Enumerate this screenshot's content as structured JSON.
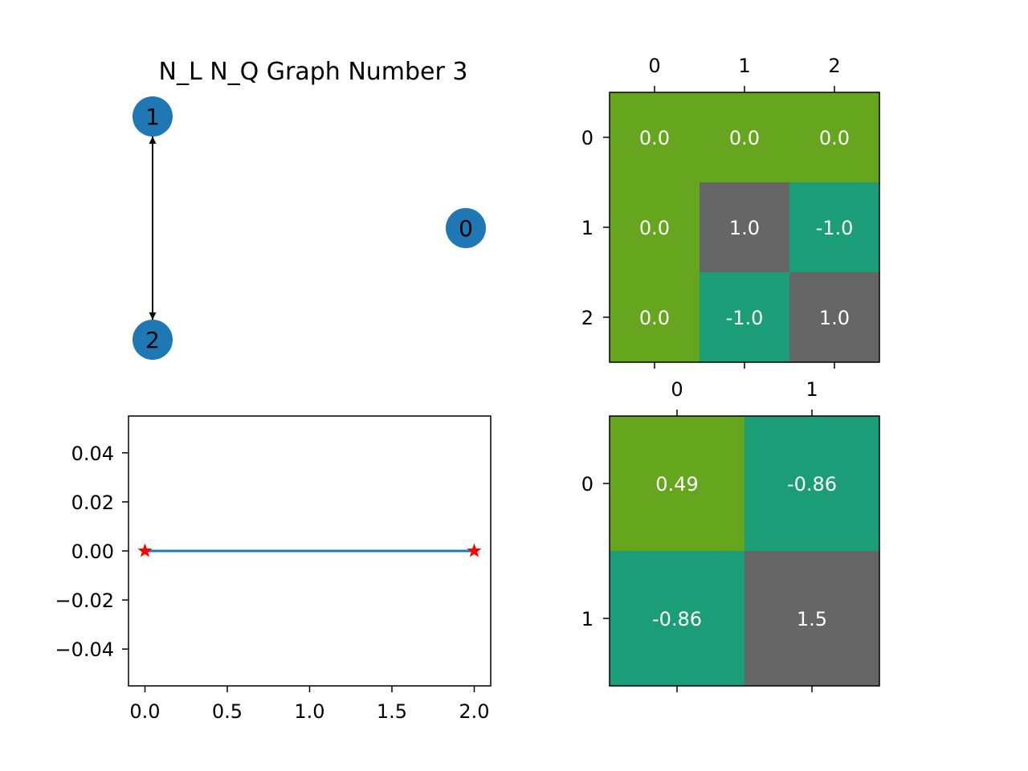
{
  "colors": {
    "node": "#1f77b4",
    "edge": "#000000",
    "line": "#1f77b4",
    "marker": "#ff0000",
    "cell_green": "#66a61e",
    "cell_gray": "#666666",
    "cell_teal": "#1b9e77"
  },
  "chart_data": [
    {
      "type": "diagram",
      "title": "N_L  N_Q Graph Number 3",
      "nodes": [
        {
          "id": "0",
          "label": "0"
        },
        {
          "id": "1",
          "label": "1"
        },
        {
          "id": "2",
          "label": "2"
        }
      ],
      "edges": [
        {
          "from": "1",
          "to": "2",
          "directed": "both"
        }
      ]
    },
    {
      "type": "heatmap",
      "x_tick_labels": [
        "0",
        "1",
        "2"
      ],
      "y_tick_labels": [
        "0",
        "1",
        "2"
      ],
      "x_tick_position": "top",
      "values": [
        [
          0.0,
          0.0,
          0.0
        ],
        [
          0.0,
          1.0,
          -1.0
        ],
        [
          0.0,
          -1.0,
          1.0
        ]
      ],
      "labels": [
        [
          "0.0",
          "0.0",
          "0.0"
        ],
        [
          "0.0",
          "1.0",
          "-1.0"
        ],
        [
          "0.0",
          "-1.0",
          "1.0"
        ]
      ],
      "cell_colors": [
        [
          "cell_green",
          "cell_green",
          "cell_green"
        ],
        [
          "cell_green",
          "cell_gray",
          "cell_teal"
        ],
        [
          "cell_green",
          "cell_teal",
          "cell_gray"
        ]
      ]
    },
    {
      "type": "line",
      "series": [
        {
          "x": [
            0.0,
            2.0
          ],
          "y": [
            0.0,
            0.0
          ],
          "marker": "star"
        }
      ],
      "xlim": [
        -0.1,
        2.1
      ],
      "ylim": [
        -0.055,
        0.055
      ],
      "x_ticks": [
        0.0,
        0.5,
        1.0,
        1.5,
        2.0
      ],
      "x_tick_labels": [
        "0.0",
        "0.5",
        "1.0",
        "1.5",
        "2.0"
      ],
      "y_ticks": [
        0.04,
        0.02,
        0.0,
        -0.02,
        -0.04
      ],
      "y_tick_labels": [
        "0.04",
        "0.02",
        "0.00",
        "−0.02",
        "−0.04"
      ],
      "grid": false
    },
    {
      "type": "heatmap",
      "x_tick_labels": [
        "0",
        "1"
      ],
      "y_tick_labels": [
        "0",
        "1"
      ],
      "x_tick_position": "top",
      "values": [
        [
          0.49,
          -0.86
        ],
        [
          -0.86,
          1.5
        ]
      ],
      "labels": [
        [
          "0.49",
          "-0.86"
        ],
        [
          "-0.86",
          "1.5"
        ]
      ],
      "cell_colors": [
        [
          "cell_green",
          "cell_teal"
        ],
        [
          "cell_teal",
          "cell_gray"
        ]
      ]
    }
  ]
}
